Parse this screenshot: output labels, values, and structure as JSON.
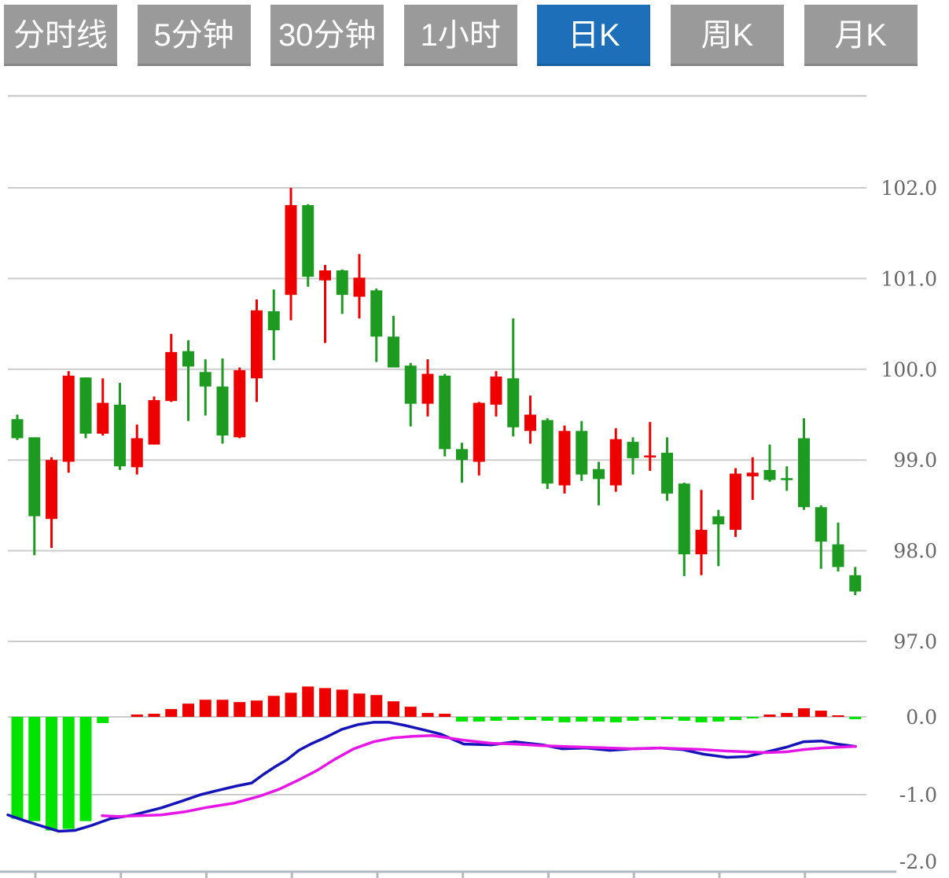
{
  "toolbar": {
    "buttons": [
      {
        "label": "分时线",
        "active": false
      },
      {
        "label": "5分钟",
        "active": false
      },
      {
        "label": "30分钟",
        "active": false
      },
      {
        "label": "1小时",
        "active": false
      },
      {
        "label": "日K",
        "active": true
      },
      {
        "label": "周K",
        "active": false
      },
      {
        "label": "月K",
        "active": false
      }
    ]
  },
  "chart_data": {
    "type": "candlestick+macd",
    "selected_timeframe": "日K",
    "grid": true,
    "legend_position": "none",
    "price_axis": {
      "side": "right",
      "ticks": [
        102.0,
        101.0,
        100.0,
        99.0,
        98.0,
        97.0
      ],
      "labels": [
        "102.0",
        "101.0",
        "100.0",
        "99.0",
        "98.0",
        "97.0"
      ],
      "range": [
        96.9,
        103.0
      ]
    },
    "macd_axis": {
      "side": "right",
      "ticks": [
        0.0,
        -1.0,
        -2.0
      ],
      "labels": [
        "0.0",
        "-1.0",
        "-2.0"
      ],
      "range": [
        -2.0,
        0.55
      ]
    },
    "colors": {
      "up": "#ee0000",
      "down": "#1d9b20",
      "hist_up": "#ee0000",
      "hist_down": "#00e400",
      "dif_line": "#1414b8",
      "dea_line": "#e616e6",
      "grid": "#cccccc",
      "axis": "#b3bac2",
      "label": "#666666",
      "button_active": "#1c6fb8",
      "button_inactive": "#9a9a9a"
    },
    "candles": [
      {
        "o": 99.45,
        "h": 99.5,
        "l": 99.22,
        "c": 99.24
      },
      {
        "o": 99.25,
        "h": 99.25,
        "l": 97.95,
        "c": 98.38
      },
      {
        "o": 98.35,
        "h": 99.03,
        "l": 98.03,
        "c": 99.0
      },
      {
        "o": 98.98,
        "h": 99.98,
        "l": 98.86,
        "c": 99.93
      },
      {
        "o": 99.91,
        "h": 99.91,
        "l": 99.24,
        "c": 99.29
      },
      {
        "o": 99.29,
        "h": 99.9,
        "l": 99.27,
        "c": 99.63
      },
      {
        "o": 99.61,
        "h": 99.85,
        "l": 98.89,
        "c": 98.93
      },
      {
        "o": 98.92,
        "h": 99.39,
        "l": 98.84,
        "c": 99.24
      },
      {
        "o": 99.17,
        "h": 99.7,
        "l": 99.17,
        "c": 99.66
      },
      {
        "o": 99.65,
        "h": 100.39,
        "l": 99.64,
        "c": 100.19
      },
      {
        "o": 100.2,
        "h": 100.32,
        "l": 99.43,
        "c": 100.03
      },
      {
        "o": 99.97,
        "h": 100.11,
        "l": 99.49,
        "c": 99.81
      },
      {
        "o": 99.81,
        "h": 100.12,
        "l": 99.18,
        "c": 99.27
      },
      {
        "o": 99.25,
        "h": 100.02,
        "l": 99.24,
        "c": 99.99
      },
      {
        "o": 99.9,
        "h": 100.77,
        "l": 99.64,
        "c": 100.65
      },
      {
        "o": 100.64,
        "h": 100.88,
        "l": 100.1,
        "c": 100.43
      },
      {
        "o": 100.82,
        "h": 102.0,
        "l": 100.54,
        "c": 101.81
      },
      {
        "o": 101.81,
        "h": 101.82,
        "l": 100.91,
        "c": 101.02
      },
      {
        "o": 100.98,
        "h": 101.15,
        "l": 100.29,
        "c": 101.09
      },
      {
        "o": 101.09,
        "h": 101.1,
        "l": 100.61,
        "c": 100.82
      },
      {
        "o": 100.8,
        "h": 101.27,
        "l": 100.56,
        "c": 101.01
      },
      {
        "o": 100.87,
        "h": 100.89,
        "l": 100.08,
        "c": 100.36
      },
      {
        "o": 100.36,
        "h": 100.59,
        "l": 100.02,
        "c": 100.02
      },
      {
        "o": 100.04,
        "h": 100.07,
        "l": 99.37,
        "c": 99.62
      },
      {
        "o": 99.62,
        "h": 100.11,
        "l": 99.48,
        "c": 99.95
      },
      {
        "o": 99.93,
        "h": 99.95,
        "l": 99.04,
        "c": 99.12
      },
      {
        "o": 99.12,
        "h": 99.19,
        "l": 98.75,
        "c": 99.0
      },
      {
        "o": 98.98,
        "h": 99.64,
        "l": 98.83,
        "c": 99.63
      },
      {
        "o": 99.61,
        "h": 99.98,
        "l": 99.48,
        "c": 99.92
      },
      {
        "o": 99.9,
        "h": 100.56,
        "l": 99.26,
        "c": 99.36
      },
      {
        "o": 99.32,
        "h": 99.71,
        "l": 99.18,
        "c": 99.5
      },
      {
        "o": 99.44,
        "h": 99.46,
        "l": 98.68,
        "c": 98.74
      },
      {
        "o": 98.72,
        "h": 99.38,
        "l": 98.63,
        "c": 99.32
      },
      {
        "o": 99.32,
        "h": 99.43,
        "l": 98.77,
        "c": 98.84
      },
      {
        "o": 98.9,
        "h": 98.98,
        "l": 98.5,
        "c": 98.79
      },
      {
        "o": 98.72,
        "h": 99.35,
        "l": 98.65,
        "c": 99.23
      },
      {
        "o": 99.2,
        "h": 99.25,
        "l": 98.84,
        "c": 99.02
      },
      {
        "o": 99.04,
        "h": 99.42,
        "l": 98.88,
        "c": 99.05
      },
      {
        "o": 99.08,
        "h": 99.25,
        "l": 98.55,
        "c": 98.63
      },
      {
        "o": 98.74,
        "h": 98.75,
        "l": 97.72,
        "c": 97.96
      },
      {
        "o": 97.96,
        "h": 98.67,
        "l": 97.73,
        "c": 98.23
      },
      {
        "o": 98.38,
        "h": 98.45,
        "l": 97.83,
        "c": 98.29
      },
      {
        "o": 98.23,
        "h": 98.91,
        "l": 98.15,
        "c": 98.85
      },
      {
        "o": 98.82,
        "h": 99.03,
        "l": 98.56,
        "c": 98.86
      },
      {
        "o": 98.89,
        "h": 99.17,
        "l": 98.76,
        "c": 98.78
      },
      {
        "o": 98.8,
        "h": 98.93,
        "l": 98.66,
        "c": 98.78
      },
      {
        "o": 99.24,
        "h": 99.46,
        "l": 98.45,
        "c": 98.48
      },
      {
        "o": 98.48,
        "h": 98.5,
        "l": 97.8,
        "c": 98.1
      },
      {
        "o": 98.07,
        "h": 98.31,
        "l": 97.77,
        "c": 97.82
      },
      {
        "o": 97.73,
        "h": 97.82,
        "l": 97.51,
        "c": 97.55
      }
    ],
    "macd": {
      "histogram": [
        -1.31,
        -1.34,
        -1.46,
        -1.44,
        -1.34,
        -0.08,
        0,
        0.03,
        0.04,
        0.1,
        0.17,
        0.22,
        0.22,
        0.19,
        0.21,
        0.27,
        0.31,
        0.39,
        0.37,
        0.35,
        0.3,
        0.28,
        0.2,
        0.13,
        0.05,
        0.04,
        -0.06,
        -0.06,
        -0.05,
        -0.04,
        -0.04,
        -0.05,
        -0.07,
        -0.06,
        -0.06,
        -0.07,
        -0.05,
        -0.04,
        -0.03,
        -0.05,
        -0.07,
        -0.06,
        -0.04,
        -0.02,
        0.03,
        0.05,
        0.11,
        0.08,
        0.02,
        -0.03
      ],
      "dif": [
        [
          10,
          -1.26
        ],
        [
          30,
          -1.33
        ],
        [
          55,
          -1.41
        ],
        [
          75,
          -1.47
        ],
        [
          95,
          -1.46
        ],
        [
          115,
          -1.4
        ],
        [
          140,
          -1.31
        ],
        [
          170,
          -1.26
        ],
        [
          205,
          -1.17
        ],
        [
          232,
          -1.08
        ],
        [
          255,
          -1.0
        ],
        [
          275,
          -0.95
        ],
        [
          300,
          -0.89
        ],
        [
          320,
          -0.85
        ],
        [
          335,
          -0.74
        ],
        [
          350,
          -0.64
        ],
        [
          365,
          -0.55
        ],
        [
          380,
          -0.43
        ],
        [
          395,
          -0.35
        ],
        [
          415,
          -0.26
        ],
        [
          435,
          -0.16
        ],
        [
          455,
          -0.1
        ],
        [
          475,
          -0.07
        ],
        [
          495,
          -0.07
        ],
        [
          515,
          -0.11
        ],
        [
          540,
          -0.17
        ],
        [
          560,
          -0.22
        ],
        [
          590,
          -0.35
        ],
        [
          625,
          -0.36
        ],
        [
          655,
          -0.32
        ],
        [
          690,
          -0.36
        ],
        [
          715,
          -0.41
        ],
        [
          745,
          -0.4
        ],
        [
          775,
          -0.43
        ],
        [
          805,
          -0.41
        ],
        [
          840,
          -0.4
        ],
        [
          868,
          -0.42
        ],
        [
          895,
          -0.48
        ],
        [
          925,
          -0.52
        ],
        [
          950,
          -0.51
        ],
        [
          975,
          -0.45
        ],
        [
          1000,
          -0.39
        ],
        [
          1022,
          -0.32
        ],
        [
          1045,
          -0.31
        ],
        [
          1065,
          -0.35
        ],
        [
          1088,
          -0.38
        ]
      ],
      "dea": [
        [
          130,
          -1.27
        ],
        [
          150,
          -1.28
        ],
        [
          175,
          -1.27
        ],
        [
          205,
          -1.26
        ],
        [
          235,
          -1.22
        ],
        [
          265,
          -1.16
        ],
        [
          297,
          -1.11
        ],
        [
          330,
          -1.02
        ],
        [
          355,
          -0.93
        ],
        [
          380,
          -0.81
        ],
        [
          403,
          -0.69
        ],
        [
          425,
          -0.55
        ],
        [
          450,
          -0.41
        ],
        [
          475,
          -0.32
        ],
        [
          500,
          -0.27
        ],
        [
          525,
          -0.25
        ],
        [
          550,
          -0.24
        ],
        [
          590,
          -0.3
        ],
        [
          625,
          -0.34
        ],
        [
          655,
          -0.35
        ],
        [
          690,
          -0.37
        ],
        [
          715,
          -0.38
        ],
        [
          745,
          -0.39
        ],
        [
          775,
          -0.4
        ],
        [
          805,
          -0.41
        ],
        [
          840,
          -0.4
        ],
        [
          868,
          -0.41
        ],
        [
          895,
          -0.42
        ],
        [
          925,
          -0.44
        ],
        [
          950,
          -0.45
        ],
        [
          975,
          -0.46
        ],
        [
          1000,
          -0.45
        ],
        [
          1022,
          -0.42
        ],
        [
          1045,
          -0.4
        ],
        [
          1065,
          -0.39
        ],
        [
          1088,
          -0.38
        ]
      ]
    }
  }
}
